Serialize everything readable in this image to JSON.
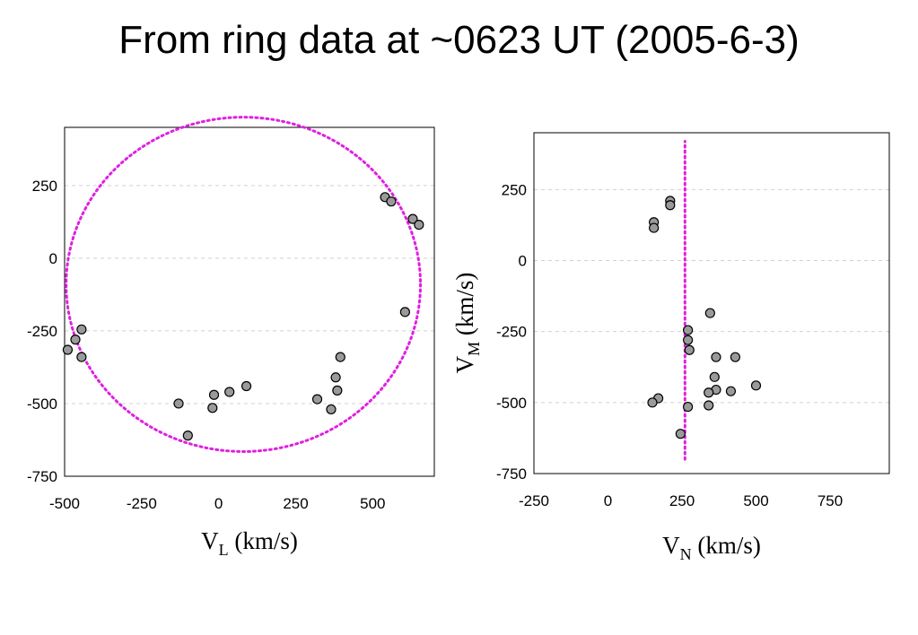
{
  "title": "From ring data at ~0623 UT (2005-6-3)",
  "colors": {
    "point_fill": "#9a9a9a",
    "point_stroke": "#000000",
    "fit_line": "#e020e0",
    "grid": "#d0d0d0"
  },
  "chart_data": [
    {
      "type": "scatter",
      "title": "",
      "xlabel": "V",
      "xlabel_sub": "L",
      "xlabel_unit": " (km/s)",
      "ylabel": "",
      "xlim": [
        -500,
        700
      ],
      "ylim": [
        -750,
        450
      ],
      "xticks": [
        -500,
        -250,
        0,
        250,
        500
      ],
      "yticks": [
        250,
        0,
        -250,
        -500,
        -750
      ],
      "ygrid": true,
      "points": [
        {
          "x": -490,
          "y": -315
        },
        {
          "x": -465,
          "y": -280
        },
        {
          "x": -445,
          "y": -245
        },
        {
          "x": -445,
          "y": -340
        },
        {
          "x": -130,
          "y": -500
        },
        {
          "x": -100,
          "y": -610
        },
        {
          "x": -20,
          "y": -515
        },
        {
          "x": -15,
          "y": -470
        },
        {
          "x": 35,
          "y": -460
        },
        {
          "x": 90,
          "y": -440
        },
        {
          "x": 320,
          "y": -485
        },
        {
          "x": 365,
          "y": -520
        },
        {
          "x": 380,
          "y": -410
        },
        {
          "x": 385,
          "y": -455
        },
        {
          "x": 395,
          "y": -340
        },
        {
          "x": 540,
          "y": 210
        },
        {
          "x": 560,
          "y": 195
        },
        {
          "x": 605,
          "y": -185
        },
        {
          "x": 630,
          "y": 135
        },
        {
          "x": 650,
          "y": 115
        }
      ],
      "fit_circle": {
        "cx": 80,
        "cy": -90,
        "r": 575,
        "style": "dotted"
      }
    },
    {
      "type": "scatter",
      "title": "",
      "xlabel": "V",
      "xlabel_sub": "N",
      "xlabel_unit": " (km/s)",
      "ylabel": "V",
      "ylabel_sub": "M",
      "ylabel_unit": " (km/s)",
      "xlim": [
        -250,
        950
      ],
      "ylim": [
        -750,
        450
      ],
      "xticks": [
        -250,
        0,
        250,
        500,
        750
      ],
      "yticks": [
        250,
        0,
        -250,
        -500,
        -750
      ],
      "ygrid": true,
      "points": [
        {
          "x": 210,
          "y": 210
        },
        {
          "x": 210,
          "y": 195
        },
        {
          "x": 155,
          "y": 135
        },
        {
          "x": 155,
          "y": 115
        },
        {
          "x": 345,
          "y": -185
        },
        {
          "x": 270,
          "y": -245
        },
        {
          "x": 270,
          "y": -280
        },
        {
          "x": 275,
          "y": -315
        },
        {
          "x": 360,
          "y": -410
        },
        {
          "x": 365,
          "y": -340
        },
        {
          "x": 430,
          "y": -340
        },
        {
          "x": 365,
          "y": -455
        },
        {
          "x": 340,
          "y": -465
        },
        {
          "x": 415,
          "y": -460
        },
        {
          "x": 500,
          "y": -440
        },
        {
          "x": 170,
          "y": -485
        },
        {
          "x": 150,
          "y": -500
        },
        {
          "x": 340,
          "y": -510
        },
        {
          "x": 270,
          "y": -515
        },
        {
          "x": 245,
          "y": -610
        }
      ],
      "fit_line": {
        "x": 260,
        "y_from": -700,
        "y_to": 420,
        "style": "dotted"
      }
    }
  ]
}
